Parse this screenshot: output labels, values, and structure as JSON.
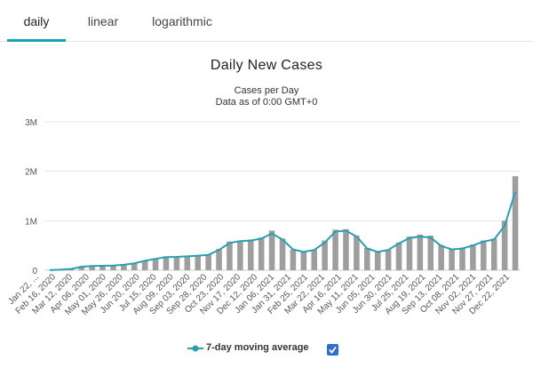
{
  "tabs": [
    {
      "label": "daily",
      "active": true
    },
    {
      "label": "linear",
      "active": false
    },
    {
      "label": "logarithmic",
      "active": false
    }
  ],
  "colors": {
    "accent": "#17a2b8",
    "bar": "#9e9e9e",
    "line": "#2a9fb0",
    "checkbox": "#2e6fc9"
  },
  "chart_data": {
    "type": "bar",
    "title": "Daily New Cases",
    "subtitle": "Cases per Day",
    "subtitle2": "Data as of 0:00 GMT+0",
    "xlabel": "",
    "ylabel": "",
    "ylim": [
      0,
      3000000
    ],
    "yticks": [
      {
        "value": 0,
        "label": "0"
      },
      {
        "value": 1000000,
        "label": "1M"
      },
      {
        "value": 2000000,
        "label": "2M"
      },
      {
        "value": 3000000,
        "label": "3M"
      }
    ],
    "x_tick_labels": [
      "Jan 22, ...",
      "Feb 16, 2020",
      "Mar 12, 2020",
      "Apr 06, 2020",
      "May 01, 2020",
      "May 26, 2020",
      "Jun 20, 2020",
      "Jul 15, 2020",
      "Aug 09, 2020",
      "Sep 03, 2020",
      "Sep 28, 2020",
      "Oct 23, 2020",
      "Nov 17, 2020",
      "Dec 12, 2020",
      "Jan 06, 2021",
      "Jan 31, 2021",
      "Feb 25, 2021",
      "Mar 22, 2021",
      "Apr 16, 2021",
      "May 11, 2021",
      "Jun 05, 2021",
      "Jun 30, 2021",
      "Jul 25, 2021",
      "Aug 19, 2021",
      "Sep 13, 2021",
      "Oct 08, 2021",
      "Nov 02, 2021",
      "Nov 27, 2021",
      "Dec 22, 2021"
    ],
    "series": [
      {
        "name": "Daily New Cases",
        "kind": "bar",
        "values": [
          2000,
          15000,
          30000,
          80000,
          90000,
          95000,
          100000,
          120000,
          150000,
          200000,
          240000,
          280000,
          275000,
          290000,
          300000,
          320000,
          430000,
          580000,
          600000,
          620000,
          660000,
          800000,
          640000,
          420000,
          380000,
          420000,
          600000,
          820000,
          830000,
          700000,
          450000,
          380000,
          420000,
          560000,
          680000,
          720000,
          700000,
          510000,
          430000,
          450000,
          520000,
          600000,
          640000,
          1000000,
          1900000
        ]
      },
      {
        "name": "7-day moving average",
        "kind": "line",
        "values": [
          2000,
          10000,
          25000,
          70000,
          85000,
          90000,
          95000,
          110000,
          140000,
          190000,
          230000,
          265000,
          270000,
          280000,
          295000,
          310000,
          410000,
          550000,
          590000,
          600000,
          640000,
          740000,
          620000,
          420000,
          370000,
          410000,
          560000,
          780000,
          800000,
          680000,
          440000,
          370000,
          410000,
          540000,
          650000,
          680000,
          660000,
          490000,
          420000,
          440000,
          500000,
          580000,
          620000,
          900000,
          1580000
        ]
      }
    ],
    "legend": {
      "label": "7-day moving average",
      "placement": "bottom",
      "checked": true
    }
  }
}
